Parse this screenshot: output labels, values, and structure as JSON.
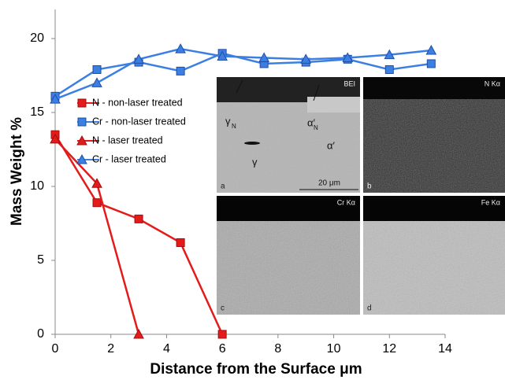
{
  "chart_data": {
    "type": "line",
    "xlabel": "Distance from the Surface μm",
    "ylabel": "Mass Weight  %",
    "xlim": [
      0,
      14
    ],
    "ylim": [
      0,
      20
    ],
    "xticks": [
      0,
      2,
      4,
      6,
      8,
      10,
      12,
      14
    ],
    "yticks": [
      0,
      5,
      10,
      15,
      20
    ],
    "series": [
      {
        "name": "N - non-laser treated",
        "color": "#e31b1b",
        "marker": "square",
        "x": [
          0,
          1.5,
          3,
          4.5,
          6
        ],
        "values": [
          13.5,
          8.9,
          7.8,
          6.2,
          0
        ]
      },
      {
        "name": "Cr - non-laser treated",
        "color": "#3c7fe3",
        "marker": "square",
        "x": [
          0,
          1.5,
          3,
          4.5,
          6,
          7.5,
          9,
          10.5,
          12,
          13.5
        ],
        "values": [
          16.1,
          17.9,
          18.4,
          17.8,
          19.0,
          18.3,
          18.4,
          18.6,
          17.9,
          18.3
        ]
      },
      {
        "name": "N - laser treated",
        "color": "#e31b1b",
        "marker": "triangle",
        "x": [
          0,
          1.5,
          3
        ],
        "values": [
          13.2,
          10.2,
          0
        ]
      },
      {
        "name": "Cr - laser treated",
        "color": "#3c7fe3",
        "marker": "triangle",
        "x": [
          0,
          1.5,
          3,
          4.5,
          6,
          7.5,
          9,
          10.5,
          12,
          13.5
        ],
        "values": [
          15.9,
          17.0,
          18.6,
          19.3,
          18.8,
          18.7,
          18.6,
          18.7,
          18.9,
          19.2
        ]
      }
    ],
    "inset_panels": [
      {
        "letter": "a",
        "title": "BEI"
      },
      {
        "letter": "b",
        "title": "N Kα"
      },
      {
        "letter": "c",
        "title": "Cr Kα"
      },
      {
        "letter": "d",
        "title": "Fe Kα"
      }
    ],
    "inset_labels": [
      {
        "text": "γ",
        "sub": "N"
      },
      {
        "text": "α′",
        "sub": "N"
      },
      {
        "text": "γ"
      },
      {
        "text": "α′"
      }
    ],
    "scale_bar": "20 μm"
  }
}
